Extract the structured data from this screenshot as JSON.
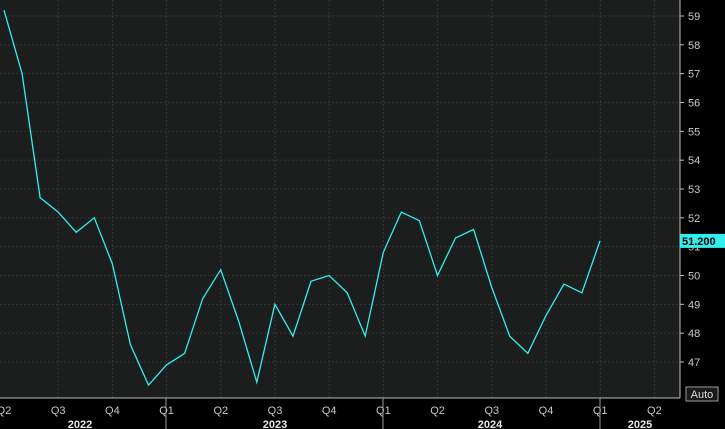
{
  "chart_data": {
    "type": "line",
    "x_labels": [
      "Q2",
      "Q3",
      "Q4",
      "Q1",
      "Q2",
      "Q3",
      "Q4",
      "Q1",
      "Q2",
      "Q3",
      "Q4",
      "Q1",
      "Q2"
    ],
    "years": [
      "2022",
      "2023",
      "2024",
      "2025"
    ],
    "ylim": [
      46,
      59.5
    ],
    "yticks": [
      "59",
      "58",
      "57",
      "56",
      "55",
      "54",
      "53",
      "52",
      "51",
      "50",
      "49",
      "48",
      "47"
    ],
    "series": [
      {
        "color": "#33eeee",
        "values": [
          59.2,
          57.0,
          52.7,
          52.2,
          51.5,
          52.0,
          50.4,
          47.6,
          46.2,
          46.9,
          47.3,
          49.2,
          50.2,
          48.4,
          46.3,
          49.0,
          47.9,
          49.8,
          50.0,
          49.4,
          47.9,
          50.8,
          52.2,
          51.9,
          50.0,
          51.3,
          51.6,
          49.6,
          47.9,
          47.3,
          48.6,
          49.7,
          49.4,
          51.2
        ]
      }
    ],
    "last_value_label": "51.200",
    "grid": true
  },
  "auto_button": "Auto",
  "colors": {
    "plot_bg": "#1b1e1c",
    "line": "#33eeee",
    "grid": "#3a3a3a",
    "page_bg": "#000000"
  }
}
